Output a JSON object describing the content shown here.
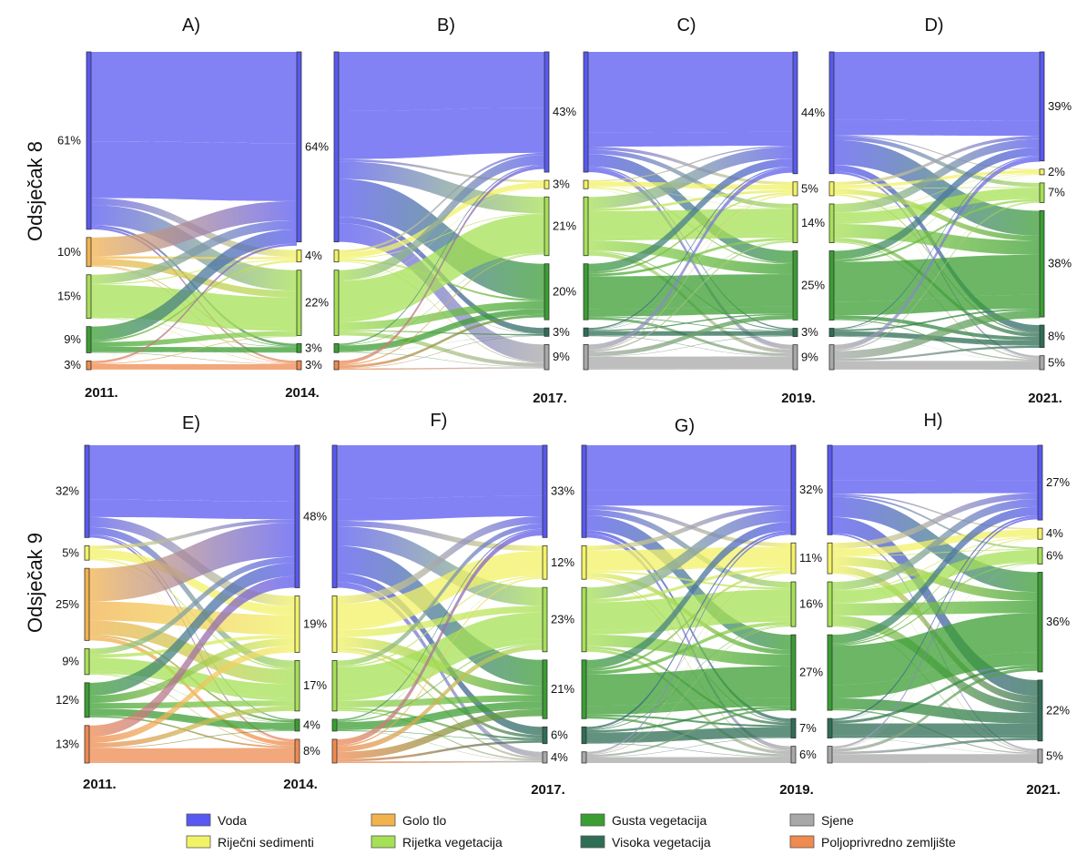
{
  "colors": {
    "Voda": "#5858f2",
    "Golo tlo": "#f2b24e",
    "Riječni sedimenti": "#f2f266",
    "Rijetka vegetacija": "#a6e055",
    "Gusta vegetacija": "#3a9e32",
    "Visoka vegetacija": "#2e6e54",
    "Sjene": "#a8a8a8",
    "Poljoprivredno zemljište": "#ef8a50"
  },
  "legend": [
    "Voda",
    "Riječni sedimenti",
    "Golo tlo",
    "Rijetka vegetacija",
    "Gusta vegetacija",
    "Visoka vegetacija",
    "Sjene",
    "Poljoprivredno zemljište"
  ],
  "rows": [
    {
      "label": "Odsječak 8"
    },
    {
      "label": "Odsječak 9"
    }
  ],
  "chart_data": [
    {
      "type": "sankey",
      "title": "A)",
      "left_year": "2011.",
      "right_year": "2014.",
      "left": [
        {
          "cls": "Voda",
          "value": 61,
          "label": "61%"
        },
        {
          "cls": "Golo tlo",
          "value": 10,
          "label": "10%"
        },
        {
          "cls": "Rijetka vegetacija",
          "value": 15,
          "label": "15%"
        },
        {
          "cls": "Gusta vegetacija",
          "value": 9,
          "label": "9%"
        },
        {
          "cls": "Poljoprivredno zemljište",
          "value": 3,
          "label": "3%"
        }
      ],
      "right": [
        {
          "cls": "Voda",
          "value": 64,
          "label": "64%"
        },
        {
          "cls": "Riječni sedimenti",
          "value": 4,
          "label": "4%"
        },
        {
          "cls": "Rijetka vegetacija",
          "value": 22,
          "label": "22%"
        },
        {
          "cls": "Gusta vegetacija",
          "value": 3,
          "label": "3%"
        },
        {
          "cls": "Poljoprivredno zemljište",
          "value": 3,
          "label": "3%"
        }
      ]
    },
    {
      "type": "sankey",
      "title": "B)",
      "left_year": "",
      "right_year": "2017.",
      "left": [
        {
          "cls": "Voda",
          "value": 64,
          "label": ""
        },
        {
          "cls": "Riječni sedimenti",
          "value": 4,
          "label": ""
        },
        {
          "cls": "Rijetka vegetacija",
          "value": 22,
          "label": ""
        },
        {
          "cls": "Gusta vegetacija",
          "value": 3,
          "label": ""
        },
        {
          "cls": "Poljoprivredno zemljište",
          "value": 3,
          "label": ""
        }
      ],
      "right": [
        {
          "cls": "Voda",
          "value": 43,
          "label": "43%"
        },
        {
          "cls": "Riječni sedimenti",
          "value": 3,
          "label": "3%"
        },
        {
          "cls": "Rijetka vegetacija",
          "value": 21,
          "label": "21%"
        },
        {
          "cls": "Gusta vegetacija",
          "value": 20,
          "label": "20%"
        },
        {
          "cls": "Visoka vegetacija",
          "value": 3,
          "label": "3%"
        },
        {
          "cls": "Sjene",
          "value": 9,
          "label": "9%"
        }
      ]
    },
    {
      "type": "sankey",
      "title": "C)",
      "left_year": "",
      "right_year": "2019.",
      "left": [
        {
          "cls": "Voda",
          "value": 43,
          "label": ""
        },
        {
          "cls": "Riječni sedimenti",
          "value": 3,
          "label": ""
        },
        {
          "cls": "Rijetka vegetacija",
          "value": 21,
          "label": ""
        },
        {
          "cls": "Gusta vegetacija",
          "value": 20,
          "label": ""
        },
        {
          "cls": "Visoka vegetacija",
          "value": 3,
          "label": ""
        },
        {
          "cls": "Sjene",
          "value": 9,
          "label": ""
        }
      ],
      "right": [
        {
          "cls": "Voda",
          "value": 44,
          "label": "44%"
        },
        {
          "cls": "Riječni sedimenti",
          "value": 5,
          "label": "5%"
        },
        {
          "cls": "Rijetka vegetacija",
          "value": 14,
          "label": "14%"
        },
        {
          "cls": "Gusta vegetacija",
          "value": 25,
          "label": "25%"
        },
        {
          "cls": "Visoka vegetacija",
          "value": 3,
          "label": "3%"
        },
        {
          "cls": "Sjene",
          "value": 9,
          "label": "9%"
        }
      ]
    },
    {
      "type": "sankey",
      "title": "D)",
      "left_year": "",
      "right_year": "2021.",
      "left": [
        {
          "cls": "Voda",
          "value": 44,
          "label": ""
        },
        {
          "cls": "Riječni sedimenti",
          "value": 5,
          "label": ""
        },
        {
          "cls": "Rijetka vegetacija",
          "value": 14,
          "label": ""
        },
        {
          "cls": "Gusta vegetacija",
          "value": 25,
          "label": ""
        },
        {
          "cls": "Visoka vegetacija",
          "value": 3,
          "label": ""
        },
        {
          "cls": "Sjene",
          "value": 9,
          "label": ""
        }
      ],
      "right": [
        {
          "cls": "Voda",
          "value": 39,
          "label": "39%"
        },
        {
          "cls": "Riječni sedimenti",
          "value": 2,
          "label": "2%"
        },
        {
          "cls": "Rijetka vegetacija",
          "value": 7,
          "label": "7%"
        },
        {
          "cls": "Gusta vegetacija",
          "value": 38,
          "label": "38%"
        },
        {
          "cls": "Visoka vegetacija",
          "value": 8,
          "label": "8%"
        },
        {
          "cls": "Sjene",
          "value": 5,
          "label": "5%"
        }
      ]
    },
    {
      "type": "sankey",
      "title": "E)",
      "left_year": "2011.",
      "right_year": "2014.",
      "left": [
        {
          "cls": "Voda",
          "value": 32,
          "label": "32%"
        },
        {
          "cls": "Riječni sedimenti",
          "value": 5,
          "label": "5%"
        },
        {
          "cls": "Golo tlo",
          "value": 25,
          "label": "25%"
        },
        {
          "cls": "Rijetka vegetacija",
          "value": 9,
          "label": "9%"
        },
        {
          "cls": "Gusta vegetacija",
          "value": 12,
          "label": "12%"
        },
        {
          "cls": "Poljoprivredno zemljište",
          "value": 13,
          "label": "13%"
        }
      ],
      "right": [
        {
          "cls": "Voda",
          "value": 48,
          "label": "48%"
        },
        {
          "cls": "Riječni sedimenti",
          "value": 19,
          "label": "19%"
        },
        {
          "cls": "Rijetka vegetacija",
          "value": 17,
          "label": "17%"
        },
        {
          "cls": "Gusta vegetacija",
          "value": 4,
          "label": "4%"
        },
        {
          "cls": "Poljoprivredno zemljište",
          "value": 8,
          "label": "8%"
        }
      ]
    },
    {
      "type": "sankey",
      "title": "F)",
      "left_year": "",
      "right_year": "2017.",
      "left": [
        {
          "cls": "Voda",
          "value": 48,
          "label": ""
        },
        {
          "cls": "Riječni sedimenti",
          "value": 19,
          "label": ""
        },
        {
          "cls": "Rijetka vegetacija",
          "value": 17,
          "label": ""
        },
        {
          "cls": "Gusta vegetacija",
          "value": 4,
          "label": ""
        },
        {
          "cls": "Poljoprivredno zemljište",
          "value": 8,
          "label": ""
        }
      ],
      "right": [
        {
          "cls": "Voda",
          "value": 33,
          "label": "33%"
        },
        {
          "cls": "Riječni sedimenti",
          "value": 12,
          "label": "12%"
        },
        {
          "cls": "Rijetka vegetacija",
          "value": 23,
          "label": "23%"
        },
        {
          "cls": "Gusta vegetacija",
          "value": 21,
          "label": "21%"
        },
        {
          "cls": "Visoka vegetacija",
          "value": 6,
          "label": "6%"
        },
        {
          "cls": "Sjene",
          "value": 4,
          "label": "4%"
        }
      ]
    },
    {
      "type": "sankey",
      "title": "G)",
      "left_year": "",
      "right_year": "2019.",
      "left": [
        {
          "cls": "Voda",
          "value": 33,
          "label": ""
        },
        {
          "cls": "Riječni sedimenti",
          "value": 12,
          "label": ""
        },
        {
          "cls": "Rijetka vegetacija",
          "value": 23,
          "label": ""
        },
        {
          "cls": "Gusta vegetacija",
          "value": 21,
          "label": ""
        },
        {
          "cls": "Visoka vegetacija",
          "value": 6,
          "label": ""
        },
        {
          "cls": "Sjene",
          "value": 4,
          "label": ""
        }
      ],
      "right": [
        {
          "cls": "Voda",
          "value": 32,
          "label": "32%"
        },
        {
          "cls": "Riječni sedimenti",
          "value": 11,
          "label": "11%"
        },
        {
          "cls": "Rijetka vegetacija",
          "value": 16,
          "label": "16%"
        },
        {
          "cls": "Gusta vegetacija",
          "value": 27,
          "label": "27%"
        },
        {
          "cls": "Visoka vegetacija",
          "value": 7,
          "label": "7%"
        },
        {
          "cls": "Sjene",
          "value": 6,
          "label": "6%"
        }
      ]
    },
    {
      "type": "sankey",
      "title": "H)",
      "left_year": "",
      "right_year": "2021.",
      "left": [
        {
          "cls": "Voda",
          "value": 32,
          "label": ""
        },
        {
          "cls": "Riječni sedimenti",
          "value": 11,
          "label": ""
        },
        {
          "cls": "Rijetka vegetacija",
          "value": 16,
          "label": ""
        },
        {
          "cls": "Gusta vegetacija",
          "value": 27,
          "label": ""
        },
        {
          "cls": "Visoka vegetacija",
          "value": 7,
          "label": ""
        },
        {
          "cls": "Sjene",
          "value": 6,
          "label": ""
        }
      ],
      "right": [
        {
          "cls": "Voda",
          "value": 27,
          "label": "27%"
        },
        {
          "cls": "Riječni sedimenti",
          "value": 4,
          "label": "4%"
        },
        {
          "cls": "Rijetka vegetacija",
          "value": 6,
          "label": "6%"
        },
        {
          "cls": "Gusta vegetacija",
          "value": 36,
          "label": "36%"
        },
        {
          "cls": "Visoka vegetacija",
          "value": 22,
          "label": "22%"
        },
        {
          "cls": "Sjene",
          "value": 5,
          "label": "5%"
        }
      ]
    }
  ]
}
